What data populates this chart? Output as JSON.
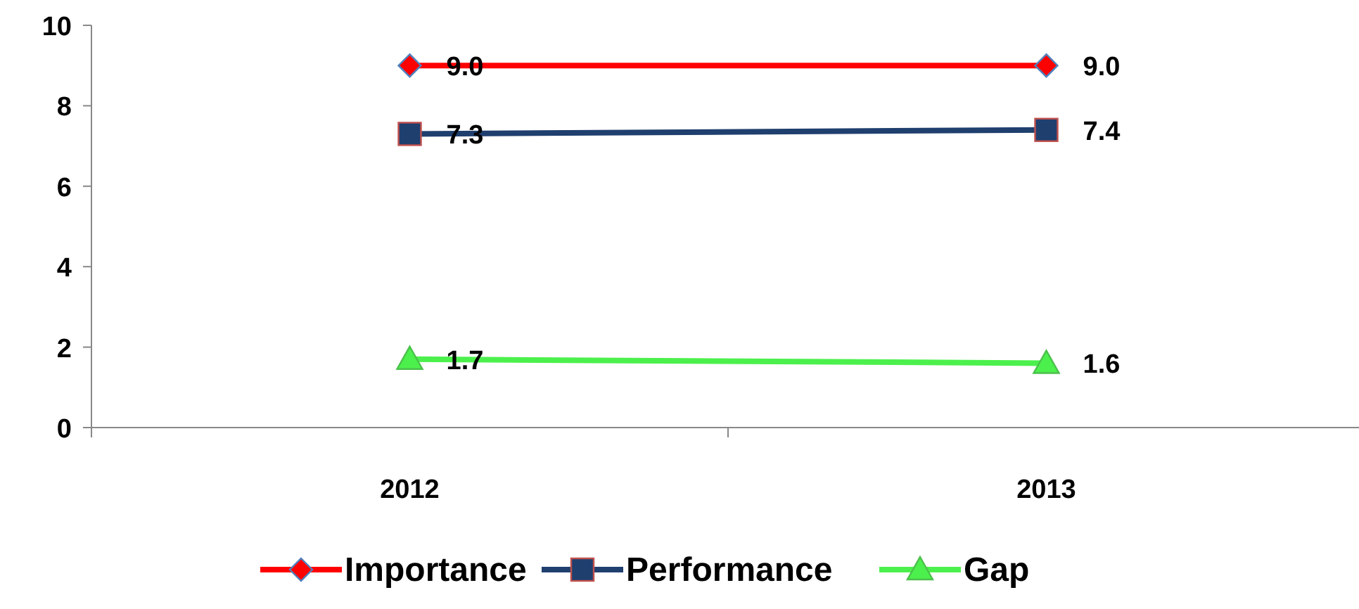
{
  "chart_data": {
    "type": "line",
    "categories": [
      "2012",
      "2013"
    ],
    "series": [
      {
        "name": "Importance",
        "color": "#ff0000",
        "values": [
          9.0,
          9.0
        ],
        "marker": "diamond",
        "value_labels": [
          "9.0",
          "9.0"
        ]
      },
      {
        "name": "Performance",
        "color": "#1f3f6e",
        "values": [
          7.3,
          7.4
        ],
        "marker": "square",
        "value_labels": [
          "7.3",
          "7.4"
        ]
      },
      {
        "name": "Gap",
        "color": "#4cf04c",
        "values": [
          1.7,
          1.6
        ],
        "marker": "triangle",
        "value_labels": [
          "1.7",
          "1.6"
        ]
      }
    ],
    "ylim": [
      0,
      10
    ],
    "yticks": [
      0,
      2,
      4,
      6,
      8,
      10
    ],
    "grid": false,
    "legend": "bottom"
  }
}
